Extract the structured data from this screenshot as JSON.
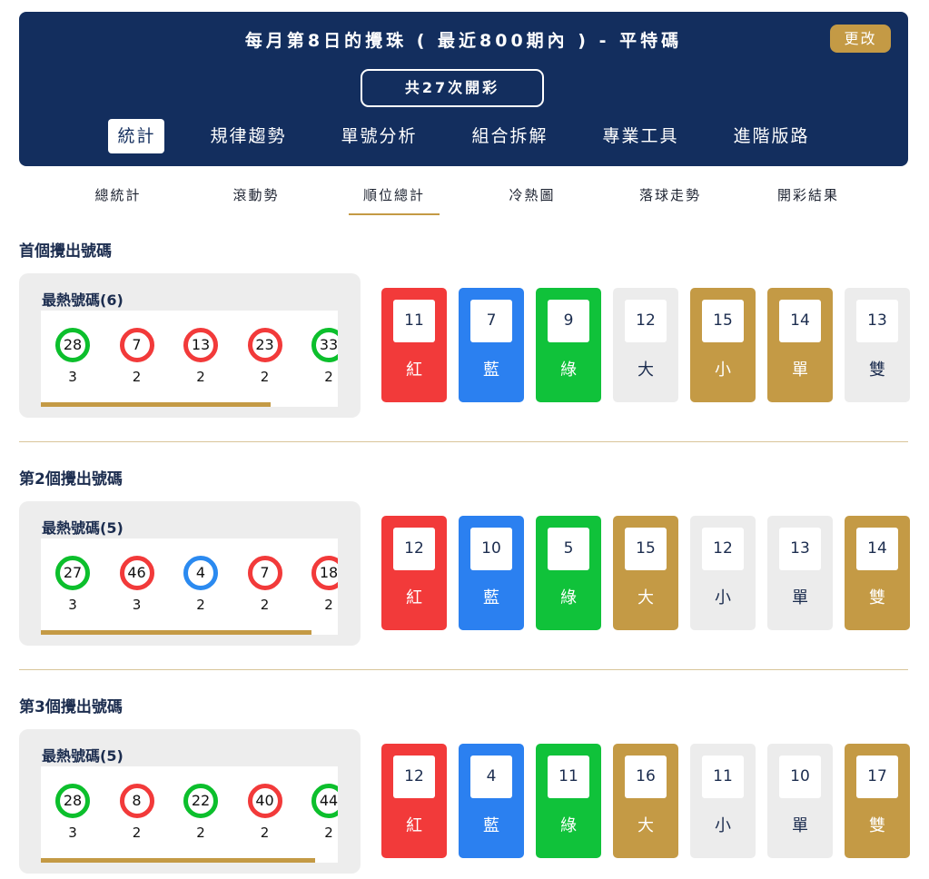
{
  "header": {
    "title": "每月第8日的攪珠 ( 最近800期內 ) - 平特碼",
    "button": "更改",
    "count": "共27次開彩",
    "tabs": [
      "統計",
      "規律趨勢",
      "單號分析",
      "組合拆解",
      "專業工具",
      "進階版路"
    ],
    "active_tab": 0
  },
  "subtabs": {
    "items": [
      "總統計",
      "滾動勢",
      "順位總計",
      "冷熱圖",
      "落球走勢",
      "開彩結果"
    ],
    "active": 2
  },
  "sections": [
    {
      "title": "首個攪出號碼",
      "hot_label": "最熱號碼(6)",
      "balls": [
        {
          "number": 28,
          "count": 3,
          "color": "green"
        },
        {
          "number": 7,
          "count": 2,
          "color": "red"
        },
        {
          "number": 13,
          "count": 2,
          "color": "red"
        },
        {
          "number": 23,
          "count": 2,
          "color": "red"
        },
        {
          "number": 33,
          "count": 2,
          "color": "green"
        }
      ],
      "stats": [
        {
          "value": 11,
          "label": "紅",
          "color": "red"
        },
        {
          "value": 7,
          "label": "藍",
          "color": "blue"
        },
        {
          "value": 9,
          "label": "綠",
          "color": "green"
        },
        {
          "value": 12,
          "label": "大",
          "color": "grey"
        },
        {
          "value": 15,
          "label": "小",
          "color": "gold"
        },
        {
          "value": 14,
          "label": "單",
          "color": "gold"
        },
        {
          "value": 13,
          "label": "雙",
          "color": "grey"
        }
      ]
    },
    {
      "title": "第2個攪出號碼",
      "hot_label": "最熱號碼(5)",
      "balls": [
        {
          "number": 27,
          "count": 3,
          "color": "green"
        },
        {
          "number": 46,
          "count": 3,
          "color": "red"
        },
        {
          "number": 4,
          "count": 2,
          "color": "blue"
        },
        {
          "number": 7,
          "count": 2,
          "color": "red"
        },
        {
          "number": 18,
          "count": 2,
          "color": "red"
        }
      ],
      "stats": [
        {
          "value": 12,
          "label": "紅",
          "color": "red"
        },
        {
          "value": 10,
          "label": "藍",
          "color": "blue"
        },
        {
          "value": 5,
          "label": "綠",
          "color": "green"
        },
        {
          "value": 15,
          "label": "大",
          "color": "gold"
        },
        {
          "value": 12,
          "label": "小",
          "color": "grey"
        },
        {
          "value": 13,
          "label": "單",
          "color": "grey"
        },
        {
          "value": 14,
          "label": "雙",
          "color": "gold"
        }
      ]
    },
    {
      "title": "第3個攪出號碼",
      "hot_label": "最熱號碼(5)",
      "balls": [
        {
          "number": 28,
          "count": 3,
          "color": "green"
        },
        {
          "number": 8,
          "count": 2,
          "color": "red"
        },
        {
          "number": 22,
          "count": 2,
          "color": "green"
        },
        {
          "number": 40,
          "count": 2,
          "color": "red"
        },
        {
          "number": 44,
          "count": 2,
          "color": "green"
        }
      ],
      "stats": [
        {
          "value": 12,
          "label": "紅",
          "color": "red"
        },
        {
          "value": 4,
          "label": "藍",
          "color": "blue"
        },
        {
          "value": 11,
          "label": "綠",
          "color": "green"
        },
        {
          "value": 16,
          "label": "大",
          "color": "gold"
        },
        {
          "value": 11,
          "label": "小",
          "color": "grey"
        },
        {
          "value": 10,
          "label": "單",
          "color": "grey"
        },
        {
          "value": 17,
          "label": "雙",
          "color": "gold"
        }
      ]
    }
  ]
}
